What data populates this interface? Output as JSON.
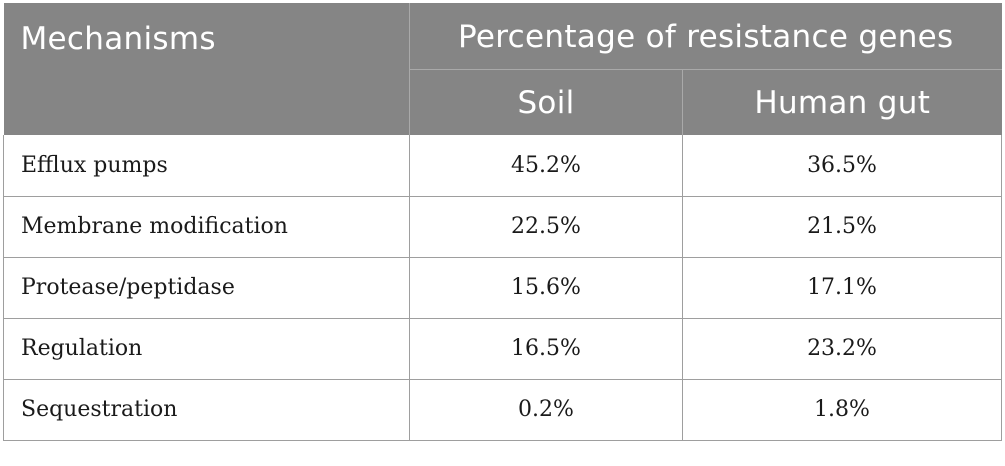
{
  "header": {
    "mechanisms": "Mechanisms",
    "group": "Percentage of resistance genes",
    "col_soil": "Soil",
    "col_gut": "Human gut"
  },
  "rows": [
    {
      "mechanism": "Efflux pumps",
      "soil": "45.2%",
      "gut": "36.5%"
    },
    {
      "mechanism": "Membrane modification",
      "soil": "22.5%",
      "gut": "21.5%"
    },
    {
      "mechanism": "Protease/peptidase",
      "soil": "15.6%",
      "gut": "17.1%"
    },
    {
      "mechanism": "Regulation",
      "soil": "16.5%",
      "gut": "23.2%"
    },
    {
      "mechanism": "Sequestration",
      "soil": "0.2%",
      "gut": "1.8%"
    }
  ],
  "colors": {
    "header_bg": "#858585",
    "header_text": "#ffffff",
    "rule": "#9e9e9e"
  }
}
